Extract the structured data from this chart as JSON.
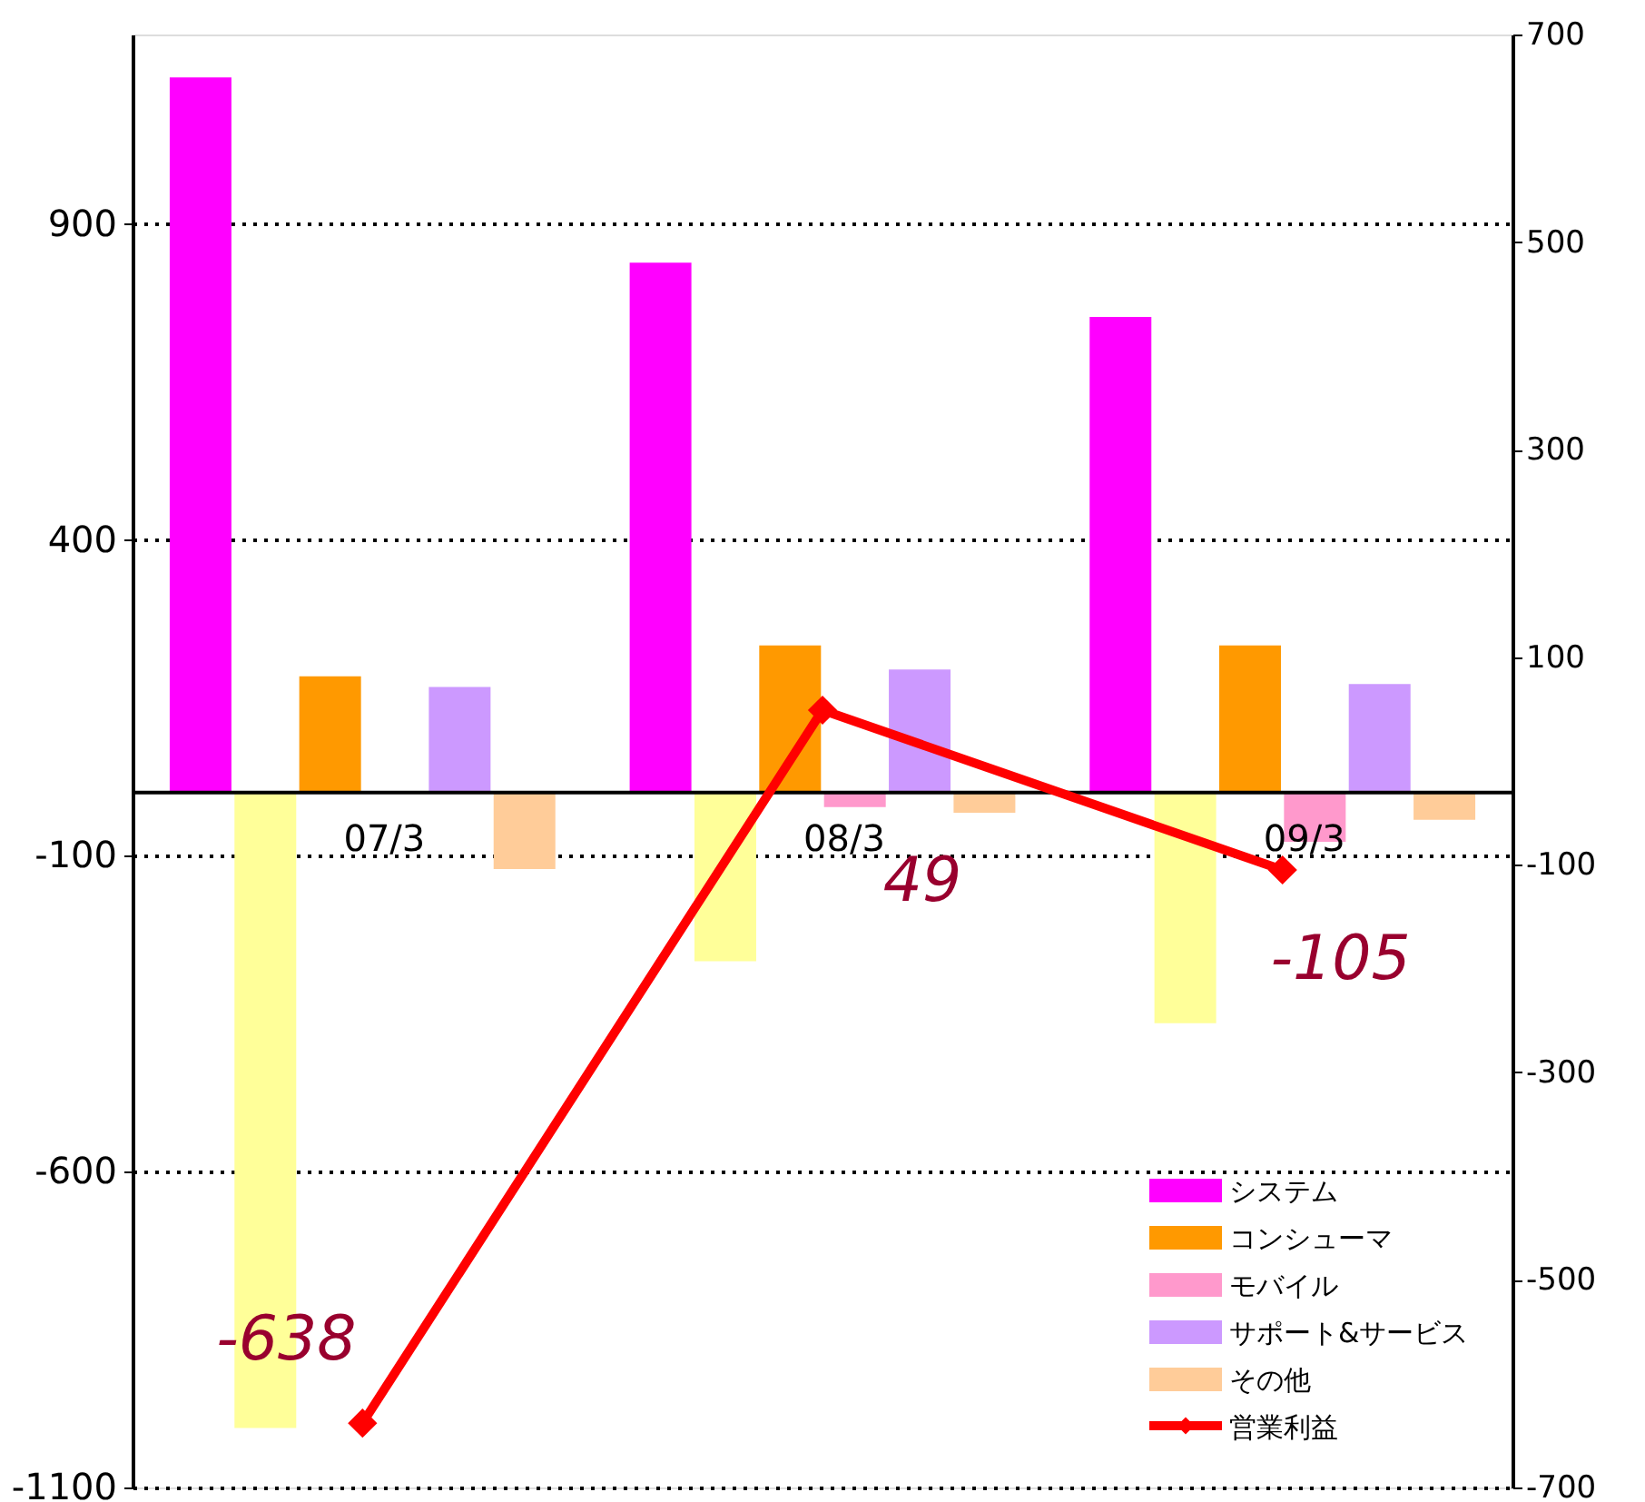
{
  "chart_data": {
    "type": "bar",
    "categories": [
      "07/3",
      "08/3",
      "09/3"
    ],
    "series": [
      {
        "name": "システム",
        "color": "#ff00ff",
        "values": [
          1132,
          839,
          753
        ]
      },
      {
        "color": "#ffff99",
        "values": [
          -1006,
          -267,
          -365
        ]
      },
      {
        "name": "コンシューマ",
        "color": "#ff9900",
        "values": [
          184,
          233,
          233
        ]
      },
      {
        "name": "モバイル",
        "color": "#ff99cc",
        "values": [
          null,
          -23,
          -78
        ]
      },
      {
        "name": "サポート&サービス",
        "color": "#cc99ff",
        "values": [
          167,
          195,
          172
        ]
      },
      {
        "name": "その他",
        "color": "#ffcc99",
        "values": [
          -121,
          -32,
          -43
        ]
      },
      {
        "name": "営業利益",
        "type": "line",
        "axis": "y2",
        "color": "#ff0000",
        "marker": "diamond",
        "values": [
          -638,
          49,
          -105
        ],
        "value_labels": [
          "-638",
          "49",
          "-105"
        ]
      }
    ],
    "ylim": [
      -1100,
      1200
    ],
    "yticks": [
      -1100,
      -600,
      -100,
      400,
      900
    ],
    "y2lim": [
      -700,
      700
    ],
    "y2ticks": [
      -700,
      -500,
      -300,
      -100,
      100,
      300,
      500,
      700
    ],
    "grid": "y",
    "legend": "bottom right"
  }
}
